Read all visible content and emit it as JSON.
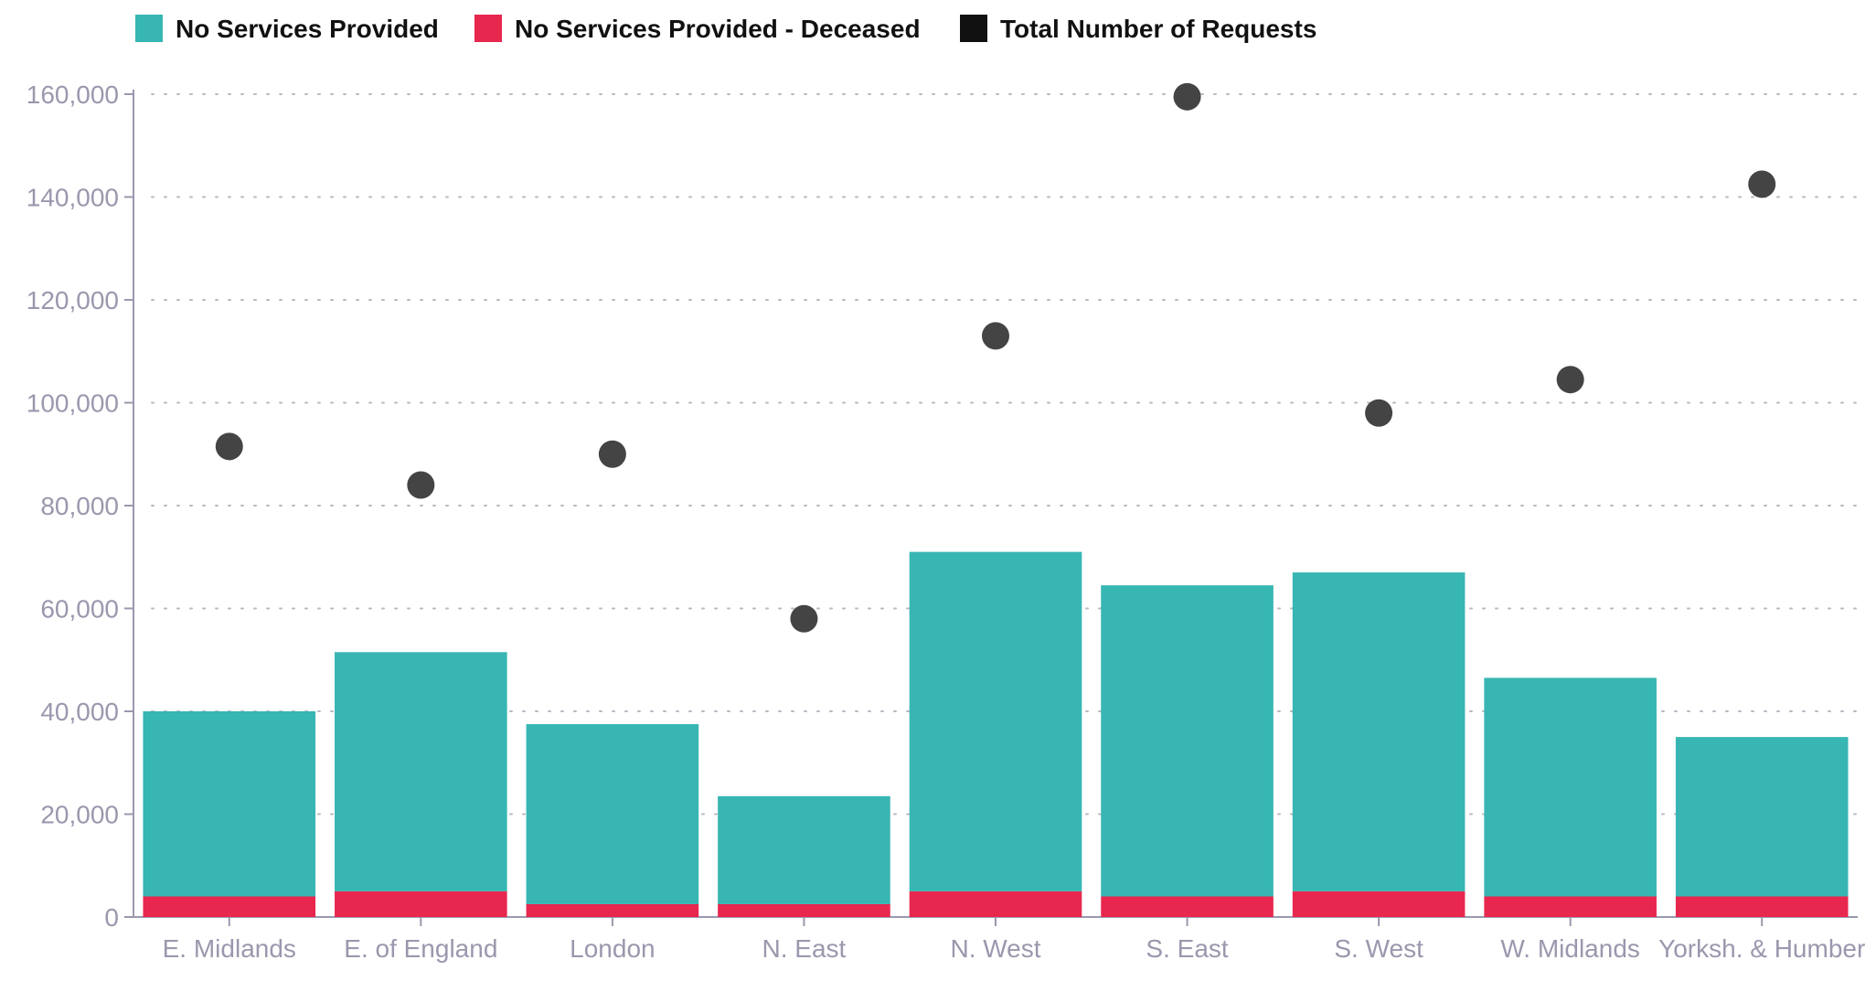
{
  "chart_data": {
    "type": "bar",
    "stacked": true,
    "title": "",
    "xlabel": "",
    "ylabel": "",
    "ylim": [
      0,
      160000
    ],
    "yticks": [
      0,
      20000,
      40000,
      60000,
      80000,
      100000,
      120000,
      140000,
      160000
    ],
    "ytick_labels": [
      "0",
      "20,000",
      "40,000",
      "60,000",
      "80,000",
      "100,000",
      "120,000",
      "140,000",
      "160,000"
    ],
    "grid": true,
    "legend_position": "top-left",
    "categories": [
      "E. Midlands",
      "E. of England",
      "London",
      "N. East",
      "N. West",
      "S. East",
      "S. West",
      "W. Midlands",
      "Yorksh. & Humber"
    ],
    "series": [
      {
        "name": "No Services Provided - Deceased",
        "kind": "bar",
        "color": "#e8274f",
        "values": [
          4000,
          5000,
          2500,
          2500,
          5000,
          4000,
          5000,
          4000,
          4000
        ]
      },
      {
        "name": "No Services Provided",
        "kind": "bar",
        "color": "#37b6b3",
        "values": [
          36000,
          46500,
          35000,
          21000,
          66000,
          60500,
          62000,
          42500,
          31000
        ]
      },
      {
        "name": "Total Number of Requests",
        "kind": "scatter",
        "color": "#444444",
        "values": [
          91500,
          84000,
          90000,
          58000,
          113000,
          159500,
          98000,
          104500,
          142500
        ]
      }
    ],
    "legend": [
      {
        "label": "No Services Provided",
        "color": "#37b6b3"
      },
      {
        "label": "No Services Provided - Deceased",
        "color": "#e8274f"
      },
      {
        "label": "Total Number of Requests",
        "color": "#111111"
      }
    ]
  }
}
